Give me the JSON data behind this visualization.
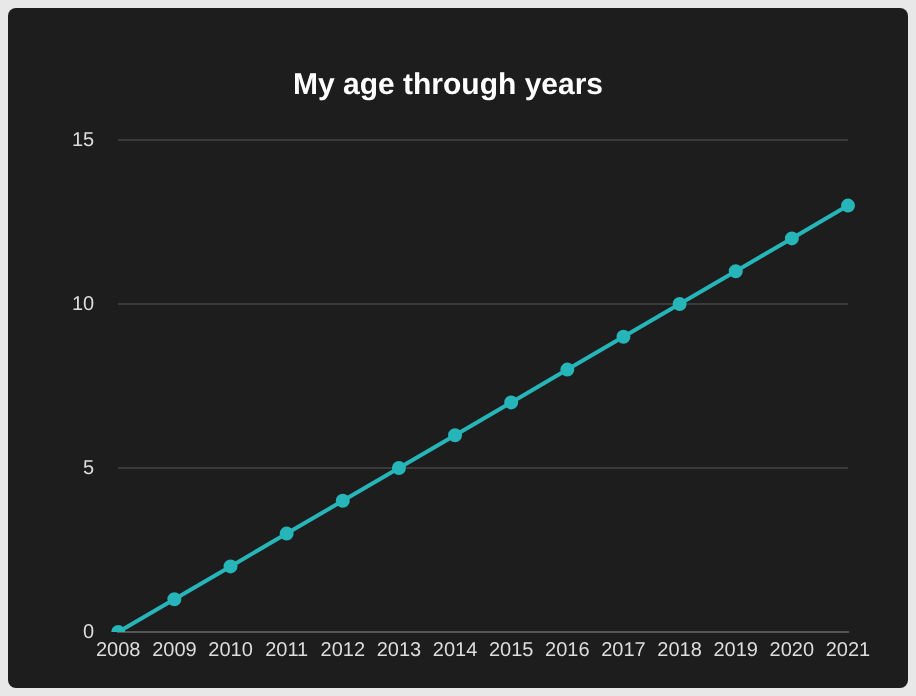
{
  "chart_data": {
    "type": "line",
    "title": "My age through years",
    "categories": [
      "2008",
      "2009",
      "2010",
      "2011",
      "2012",
      "2013",
      "2014",
      "2015",
      "2016",
      "2017",
      "2018",
      "2019",
      "2020",
      "2021"
    ],
    "values": [
      0,
      1,
      2,
      3,
      4,
      5,
      6,
      7,
      8,
      9,
      10,
      11,
      12,
      13
    ],
    "color": "#26b5b8",
    "ylim": [
      0,
      15
    ],
    "yticks": [
      0,
      5,
      10,
      15
    ],
    "grid": "y",
    "marker": "circle",
    "legend": false
  }
}
